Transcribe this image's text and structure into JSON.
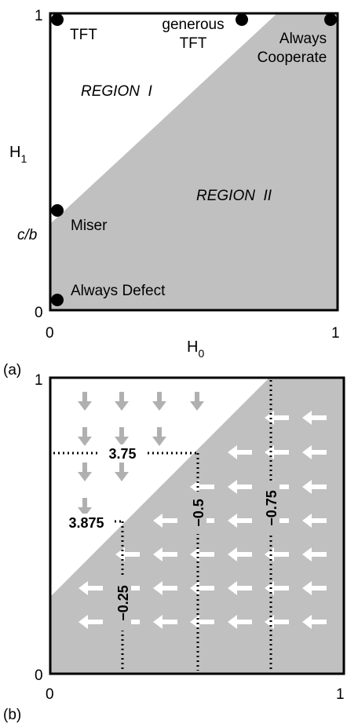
{
  "panel_a": {
    "tag": "(a)",
    "x_axis": {
      "label_main": "H",
      "label_sub": "0",
      "tick_min": "0",
      "tick_max": "1"
    },
    "y_axis": {
      "label_main": "H",
      "label_sub": "1",
      "tick_min": "0",
      "tick_max": "1",
      "tick_mid": "c/b"
    },
    "regions": {
      "upper": "REGION  I",
      "lower": "REGION  II"
    },
    "strategies": [
      {
        "name": "TFT",
        "h0": 0.01,
        "h1": 0.97
      },
      {
        "name": "generous TFT",
        "line1": "generous",
        "line2": "TFT",
        "h0": 0.72,
        "h1": 0.97
      },
      {
        "name": "Always Cooperate",
        "line1": "Always",
        "line2": "Cooperate",
        "h0": 0.99,
        "h1": 0.97
      },
      {
        "name": "Miser",
        "h0": 0.01,
        "h1": 0.33
      },
      {
        "name": "Always Defect",
        "h0": 0.01,
        "h1": 0.03
      }
    ],
    "colors": {
      "shade": "#c0c0c0",
      "dot": "#000000"
    }
  },
  "panel_b": {
    "tag": "(b)",
    "x_axis": {
      "tick_min": "0",
      "tick_max": "1"
    },
    "y_axis": {
      "tick_min": "0",
      "tick_max": "1"
    },
    "contours": [
      {
        "label": "3.75",
        "orientation": "horizontal"
      },
      {
        "label": "3.875",
        "orientation": "horizontal"
      },
      {
        "label": "−0.25",
        "orientation": "vertical"
      },
      {
        "label": "−0.5",
        "orientation": "vertical"
      },
      {
        "label": "−0.75",
        "orientation": "vertical"
      }
    ],
    "colors": {
      "shade": "#c0c0c0",
      "arrow_upper": "#b0b0b0",
      "arrow_lower": "#ffffff"
    }
  }
}
